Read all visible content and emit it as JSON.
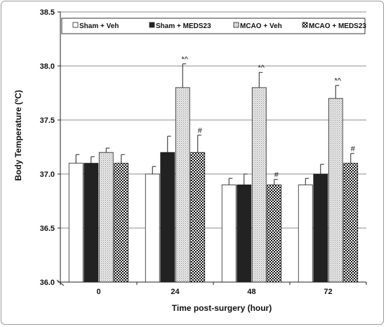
{
  "chart_data": {
    "type": "bar",
    "categories": [
      "0",
      "24",
      "48",
      "72"
    ],
    "series": [
      {
        "name": "Sham + Veh",
        "values": [
          37.1,
          37.0,
          36.9,
          36.9
        ],
        "errors": [
          0.08,
          0.07,
          0.06,
          0.06
        ],
        "fill": "#ffffff",
        "pattern": "none"
      },
      {
        "name": "Sham + MEDS23",
        "values": [
          37.1,
          37.2,
          36.9,
          37.0
        ],
        "errors": [
          0.06,
          0.15,
          0.1,
          0.09
        ],
        "fill": "#222222",
        "pattern": "none"
      },
      {
        "name": "MCAO + Veh",
        "values": [
          37.2,
          37.8,
          37.8,
          37.7
        ],
        "errors": [
          0.04,
          0.22,
          0.14,
          0.12
        ],
        "fill": "#e4e4e4",
        "pattern": "stipple"
      },
      {
        "name": "MCAO + MEDS23",
        "values": [
          37.1,
          37.2,
          36.9,
          37.1
        ],
        "errors": [
          0.08,
          0.16,
          0.05,
          0.09
        ],
        "fill": "#ffffff",
        "pattern": "checker"
      }
    ],
    "annotations": [
      {
        "text": "*^",
        "category": "24",
        "series": "MCAO + Veh"
      },
      {
        "text": "#",
        "category": "24",
        "series": "MCAO + MEDS23"
      },
      {
        "text": "*^",
        "category": "48",
        "series": "MCAO + Veh"
      },
      {
        "text": "#",
        "category": "48",
        "series": "MCAO + MEDS23"
      },
      {
        "text": "*^",
        "category": "72",
        "series": "MCAO + Veh"
      },
      {
        "text": "#",
        "category": "72",
        "series": "MCAO + MEDS23"
      }
    ],
    "title": "",
    "xlabel": "Time post-surgery (hour)",
    "ylabel": "Body Temperature (ºC)",
    "ylim": [
      36.0,
      38.5
    ],
    "yticks": [
      "36.0",
      "36.5",
      "37.0",
      "37.5",
      "38.0",
      "38.5"
    ],
    "grid": true,
    "legend_position": "top"
  }
}
